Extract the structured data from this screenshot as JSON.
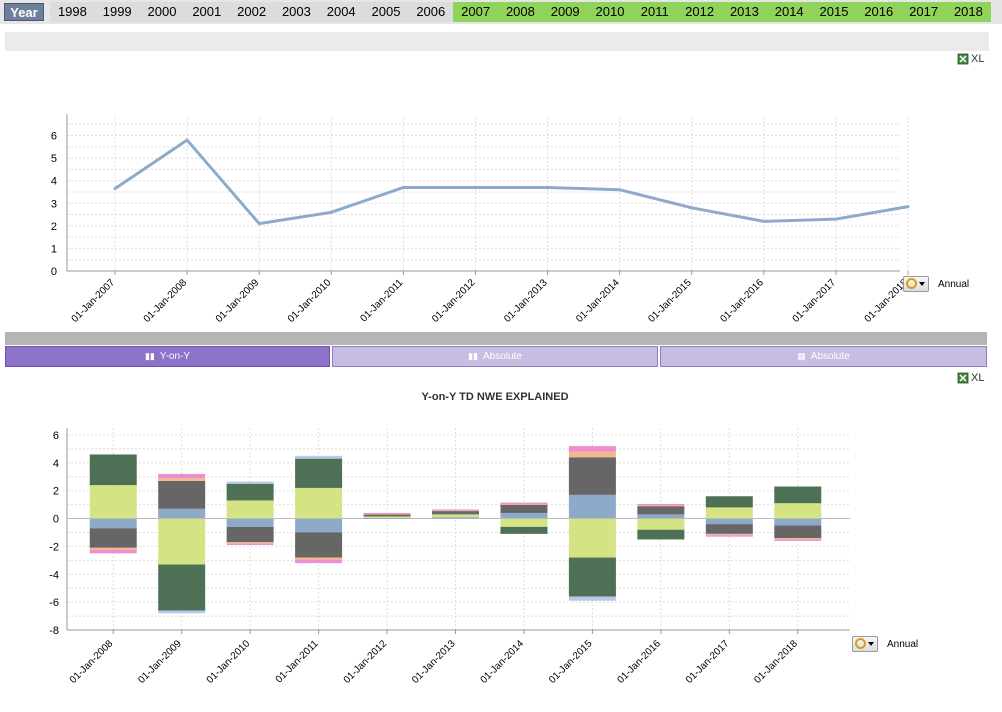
{
  "year_bar": {
    "label": "Year",
    "years": [
      {
        "label": "1998",
        "selected": false
      },
      {
        "label": "1999",
        "selected": false
      },
      {
        "label": "2000",
        "selected": false
      },
      {
        "label": "2001",
        "selected": false
      },
      {
        "label": "2002",
        "selected": false
      },
      {
        "label": "2003",
        "selected": false
      },
      {
        "label": "2004",
        "selected": false
      },
      {
        "label": "2005",
        "selected": false
      },
      {
        "label": "2006",
        "selected": false
      },
      {
        "label": "2007",
        "selected": true
      },
      {
        "label": "2008",
        "selected": true
      },
      {
        "label": "2009",
        "selected": true
      },
      {
        "label": "2010",
        "selected": true
      },
      {
        "label": "2011",
        "selected": true
      },
      {
        "label": "2012",
        "selected": true
      },
      {
        "label": "2013",
        "selected": true
      },
      {
        "label": "2014",
        "selected": true
      },
      {
        "label": "2015",
        "selected": true
      },
      {
        "label": "2016",
        "selected": true
      },
      {
        "label": "2017",
        "selected": true
      },
      {
        "label": "2018",
        "selected": true
      }
    ],
    "colors": {
      "selected": "#8fd35a",
      "unselected": "#dcdcdc"
    }
  },
  "export": {
    "label": "XL",
    "icon": "excel-export-icon"
  },
  "tabs": [
    {
      "label": "Y-on-Y",
      "icon": "bar-chart-icon",
      "active": true
    },
    {
      "label": "Absolute",
      "icon": "bar-chart-icon",
      "active": false
    },
    {
      "label": "Absolute",
      "icon": "table-icon",
      "active": false
    }
  ],
  "line_chart_control": {
    "label": "Annual",
    "icon": "cycle-dropdown-icon"
  },
  "bar_chart_control": {
    "label": "Annual",
    "icon": "cycle-dropdown-icon"
  },
  "chart_data": [
    {
      "type": "line",
      "title": "",
      "xlabel": "",
      "ylabel": "",
      "categories": [
        "01-Jan-2007",
        "01-Jan-2008",
        "01-Jan-2009",
        "01-Jan-2010",
        "01-Jan-2011",
        "01-Jan-2012",
        "01-Jan-2013",
        "01-Jan-2014",
        "01-Jan-2015",
        "01-Jan-2016",
        "01-Jan-2017",
        "01-Jan-2018"
      ],
      "values": [
        3.65,
        5.8,
        2.1,
        2.6,
        3.7,
        3.7,
        3.7,
        3.6,
        2.8,
        2.2,
        2.3,
        2.85
      ],
      "yticks": [
        0,
        1,
        2,
        3,
        4,
        5,
        6
      ],
      "ylim": [
        0,
        6.6
      ],
      "grid": true,
      "color": "#8eaacb"
    },
    {
      "type": "bar",
      "title": "Y-on-Y TD NWE EXPLAINED",
      "xlabel": "",
      "ylabel": "",
      "stacked": true,
      "categories": [
        "01-Jan-2008",
        "01-Jan-2009",
        "01-Jan-2010",
        "01-Jan-2011",
        "01-Jan-2012",
        "01-Jan-2013",
        "01-Jan-2014",
        "01-Jan-2015",
        "01-Jan-2016",
        "01-Jan-2017",
        "01-Jan-2018"
      ],
      "yticks": [
        -8,
        -6,
        -4,
        -2,
        0,
        2,
        4,
        6
      ],
      "ylim": [
        -8,
        6.5
      ],
      "grid": true,
      "series": [
        {
          "color": "#8eaacb",
          "values": [
            -0.7,
            0.7,
            -0.6,
            -1.0,
            0.05,
            0.1,
            0.4,
            1.7,
            0.3,
            -0.4,
            -0.5
          ]
        },
        {
          "color": "#d4e384",
          "values": [
            2.4,
            -3.3,
            1.3,
            2.2,
            0.1,
            0.2,
            -0.6,
            -2.8,
            -0.8,
            0.8,
            1.1
          ]
        },
        {
          "color": "#666666",
          "values": [
            -1.4,
            2.0,
            -1.1,
            -1.8,
            0.1,
            0.2,
            0.6,
            2.7,
            0.6,
            -0.7,
            -0.9
          ]
        },
        {
          "color": "#4e7054",
          "values": [
            2.2,
            -3.3,
            1.2,
            2.1,
            0.05,
            0.05,
            -0.5,
            -2.8,
            -0.7,
            0.8,
            1.2
          ]
        },
        {
          "color": "#f2b88a",
          "values": [
            -0.15,
            0.2,
            -0.1,
            -0.15,
            0.05,
            0.05,
            0.05,
            0.4,
            0.05,
            -0.1,
            -0.1
          ]
        },
        {
          "color": "#ec8ed0",
          "values": [
            -0.25,
            0.3,
            -0.1,
            -0.25,
            0.05,
            0.05,
            0.1,
            0.4,
            0.1,
            -0.1,
            -0.1
          ]
        },
        {
          "color": "#b7c8e8",
          "values": [
            0,
            -0.2,
            0.15,
            0.2,
            0,
            0,
            0,
            -0.3,
            0,
            0,
            0
          ]
        }
      ]
    }
  ]
}
